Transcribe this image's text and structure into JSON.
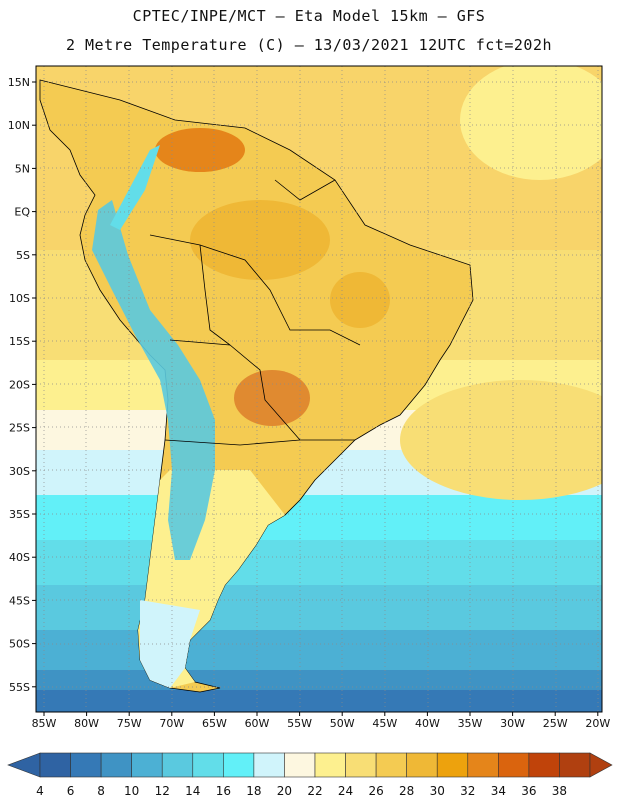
{
  "header": {
    "title_line1": "CPTEC/INPE/MCT –  Eta Model 15km – GFS",
    "title_line2": "2 Metre Temperature (C) – 13/03/2021 12UTC fct=202h"
  },
  "axes": {
    "lat_labels": [
      "15N",
      "10N",
      "5N",
      "EQ",
      "5S",
      "10S",
      "15S",
      "20S",
      "25S",
      "30S",
      "35S",
      "40S",
      "45S",
      "50S",
      "55S"
    ],
    "lon_labels": [
      "85W",
      "80W",
      "75W",
      "70W",
      "65W",
      "60W",
      "55W",
      "50W",
      "45W",
      "40W",
      "35W",
      "30W",
      "25W",
      "20W"
    ]
  },
  "legend": {
    "levels": [
      "4",
      "6",
      "8",
      "10",
      "12",
      "14",
      "16",
      "18",
      "20",
      "22",
      "24",
      "26",
      "28",
      "30",
      "32",
      "34",
      "36",
      "38"
    ],
    "colors": [
      "#2f63a3",
      "#3579b6",
      "#3f93c4",
      "#4cb0d4",
      "#5ac9df",
      "#62dde9",
      "#62f0f8",
      "#d0f4fb",
      "#fdf7e0",
      "#fdf08f",
      "#f8de75",
      "#f4cb52",
      "#efb836",
      "#eda20d",
      "#e5851a",
      "#da640e",
      "#c0430a",
      "#b04010"
    ]
  },
  "map": {
    "colors": {
      "ocean_warm": "#f8d46a",
      "ocean_mid": "#f8de75",
      "ocean_pale": "#fdf08f",
      "ocean_cream": "#fdf7e0",
      "land_warm": "#f4cb52",
      "land_hot": "#efb836",
      "land_very_hot": "#e08a30",
      "andes_cold": "#5ac9df",
      "border": "#000000",
      "grid": "#8a8a8a"
    }
  }
}
